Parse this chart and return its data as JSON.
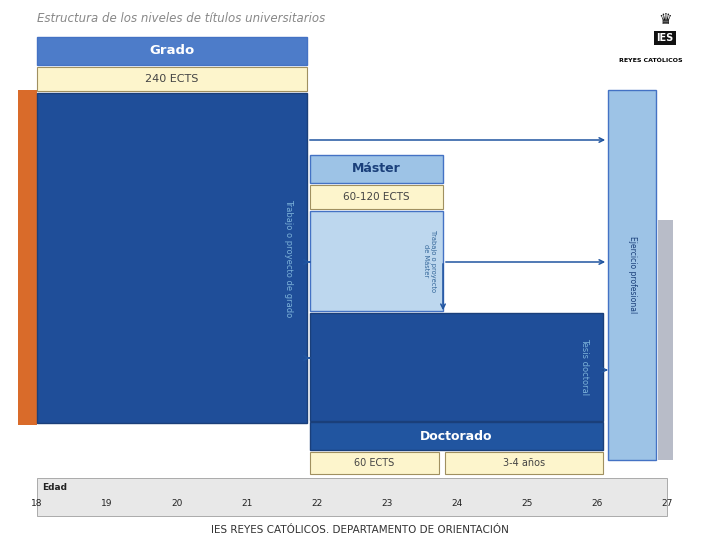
{
  "title": "Estructura de los niveles de títulos universitarios",
  "footer": "IES REYES CATÓLICOS. DEPARTAMENTO DE ORIENTACIÓN",
  "bg": "#ffffff",
  "grado_header_fc": "#4d7cc9",
  "grado_body_fc": "#1f4e99",
  "ects_cream": "#fdf5cc",
  "master_header_fc": "#9dc3e6",
  "master_body_fc": "#bdd7ee",
  "doc_header_fc": "#2155a0",
  "doc_body_fc": "#1f4e99",
  "ejercicio_fc": "#9dc3e6",
  "grey_fc": "#b8bcc8",
  "orange_fc": "#d96b2a",
  "arrow_col": "#2155a0",
  "age_bg": "#e8e8e8",
  "ages": [
    18,
    19,
    20,
    21,
    22,
    23,
    24,
    25,
    26,
    27
  ],
  "border_blue": "#4472c4"
}
